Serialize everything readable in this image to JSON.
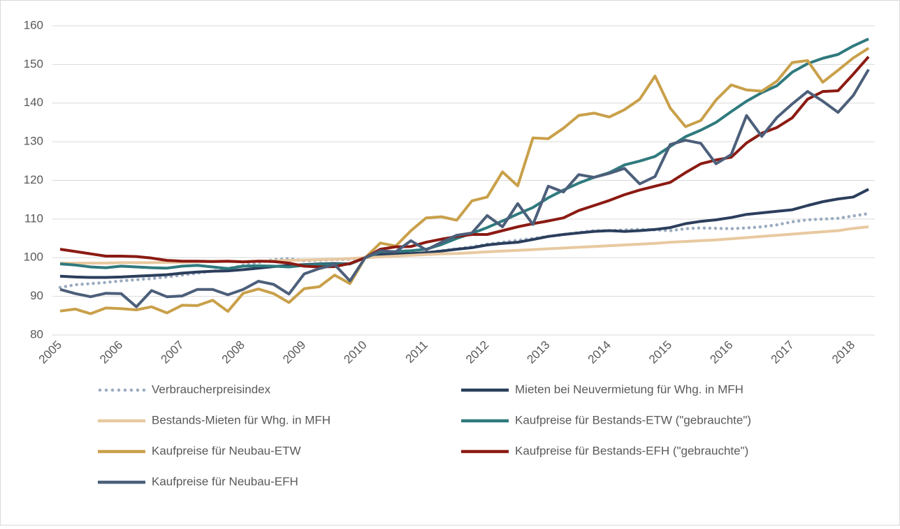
{
  "chart_data": {
    "type": "line",
    "categories": [
      "2005",
      null,
      null,
      null,
      "2006",
      null,
      null,
      null,
      "2007",
      null,
      null,
      null,
      "2008",
      null,
      null,
      null,
      "2009",
      null,
      null,
      null,
      "2010",
      null,
      null,
      null,
      "2011",
      null,
      null,
      null,
      "2012",
      null,
      null,
      null,
      "2013",
      null,
      null,
      null,
      "2014",
      null,
      null,
      null,
      "2015",
      null,
      null,
      null,
      "2016",
      null,
      null,
      null,
      "2017",
      null,
      null,
      null,
      "2018",
      null
    ],
    "ylim": [
      80,
      160
    ],
    "yticks": [
      80,
      90,
      100,
      110,
      120,
      130,
      140,
      150,
      160
    ],
    "grid": true,
    "series": [
      {
        "name": "Verbraucherpreisindex",
        "color": "#9aabbf",
        "style": "dotted",
        "values": [
          92.3,
          93,
          93.3,
          93.6,
          94,
          94.3,
          94.6,
          95,
          95.5,
          96,
          96.5,
          97.2,
          98,
          98.7,
          99.5,
          99.8,
          99.2,
          99.3,
          99.5,
          99.6,
          100,
          100.4,
          100.7,
          100.9,
          101.3,
          101.8,
          102.3,
          102.8,
          103.5,
          104,
          104.5,
          105,
          105.5,
          106,
          106.5,
          107,
          107,
          107.2,
          107.3,
          107.2,
          107,
          107.5,
          107.7,
          107.6,
          107.5,
          107.7,
          108,
          108.5,
          109.3,
          109.8,
          110,
          110.2,
          110.8,
          111.4
        ]
      },
      {
        "name": "Mieten bei Neuvermietung für Whg. in MFH",
        "color": "#2b3e5c",
        "style": "solid",
        "values": [
          95.2,
          95,
          94.9,
          94.9,
          95,
          95.2,
          95.4,
          95.6,
          96,
          96.3,
          96.5,
          96.6,
          96.9,
          97.3,
          97.7,
          98,
          98.2,
          98.4,
          98.5,
          98.4,
          100,
          100.8,
          101,
          101.1,
          101.3,
          101.7,
          102.2,
          102.6,
          103.3,
          103.7,
          104,
          104.7,
          105.5,
          106,
          106.4,
          106.8,
          107,
          106.8,
          107,
          107.3,
          107.8,
          108.8,
          109.4,
          109.8,
          110.4,
          111.2,
          111.6,
          112,
          112.4,
          113.5,
          114.5,
          115.2,
          115.7,
          117.7
        ]
      },
      {
        "name": "Bestands-Mieten für Whg. in MFH",
        "color": "#e8c9a0",
        "style": "solid",
        "values": [
          98.6,
          98.6,
          98.6,
          98.6,
          98.7,
          98.7,
          98.7,
          98.8,
          98.8,
          98.9,
          99,
          99,
          99,
          99.1,
          99.2,
          99.3,
          99.4,
          99.5,
          99.6,
          99.8,
          100,
          100.2,
          100.4,
          100.6,
          100.8,
          101,
          101.1,
          101.3,
          101.5,
          101.7,
          101.9,
          102.1,
          102.3,
          102.5,
          102.7,
          102.9,
          103.1,
          103.3,
          103.5,
          103.7,
          104,
          104.2,
          104.4,
          104.6,
          104.9,
          105.2,
          105.5,
          105.8,
          106.1,
          106.4,
          106.7,
          107,
          107.6,
          108
        ]
      },
      {
        "name": "Kaufpreise für Bestands-ETW (\"gebrauchte\")",
        "color": "#2f7a7e",
        "style": "solid",
        "values": [
          98.4,
          98.1,
          97.6,
          97.4,
          97.8,
          97.6,
          97.4,
          97.3,
          97.8,
          98,
          97.6,
          97.2,
          97.8,
          97.9,
          97.8,
          97.6,
          98,
          98.3,
          98.3,
          98.4,
          100,
          101.5,
          101.6,
          101.8,
          102.2,
          103.4,
          105,
          106.3,
          107.8,
          109.5,
          111.3,
          113,
          115.5,
          117.5,
          119.3,
          120.8,
          122,
          124,
          125,
          126.2,
          128.8,
          131.3,
          133,
          135,
          137.8,
          140.5,
          142.7,
          144.5,
          148,
          150.2,
          151.6,
          152.6,
          154.8,
          156.6
        ]
      },
      {
        "name": "Kaufpreise für Neubau-ETW",
        "color": "#c9a04a",
        "style": "solid",
        "values": [
          86.2,
          86.7,
          85.5,
          87,
          86.8,
          86.5,
          87.3,
          85.7,
          87.7,
          87.6,
          89,
          86.1,
          90.8,
          91.9,
          90.7,
          88.4,
          92,
          92.5,
          95.5,
          93.3,
          100,
          103.8,
          103,
          107,
          110.3,
          110.6,
          109.7,
          114.7,
          115.7,
          122.2,
          118.6,
          131,
          130.8,
          133.5,
          136.8,
          137.4,
          136.4,
          138.3,
          141,
          147,
          138.7,
          133.9,
          135.5,
          140.8,
          144.7,
          143.4,
          143.1,
          145.7,
          150.5,
          151,
          145.4,
          148.5,
          151.7,
          154.2
        ]
      },
      {
        "name": "Kaufpreise für Bestands-EFH (\"gebrauchte\")",
        "color": "#8b1a12",
        "style": "solid",
        "values": [
          102.2,
          101.6,
          101,
          100.4,
          100.4,
          100.3,
          99.9,
          99.3,
          99.1,
          99.1,
          99,
          99.1,
          98.9,
          99.1,
          99,
          98.6,
          97.8,
          97.6,
          97.7,
          98.5,
          100,
          102.2,
          102.8,
          102.9,
          104,
          104.8,
          105.5,
          106,
          106,
          107,
          108,
          108.8,
          109.5,
          110.3,
          112.2,
          113.5,
          114.8,
          116.3,
          117.5,
          118.5,
          119.5,
          122,
          124.3,
          125.3,
          126,
          129.7,
          132.2,
          133.7,
          136.2,
          141,
          143,
          143.2,
          147.5,
          152
        ]
      },
      {
        "name": "Kaufpreise für Neubau-EFH",
        "color": "#4c5f7a",
        "style": "solid",
        "values": [
          91.8,
          90.7,
          89.9,
          90.8,
          90.7,
          87.3,
          91.5,
          89.9,
          90.1,
          91.8,
          91.8,
          90.4,
          91.8,
          93.9,
          93.1,
          90.6,
          95.8,
          97.2,
          98.2,
          94,
          100,
          101.8,
          101.5,
          104.4,
          102,
          104,
          105.8,
          106.4,
          110.9,
          108,
          114,
          108.6,
          118.5,
          117,
          121.5,
          120.8,
          121.8,
          123.1,
          119.1,
          121,
          129.3,
          130.4,
          129.6,
          124.3,
          126.7,
          136.8,
          131.4,
          136.3,
          139.8,
          143,
          140.5,
          137.6,
          142,
          148.7
        ]
      }
    ]
  }
}
